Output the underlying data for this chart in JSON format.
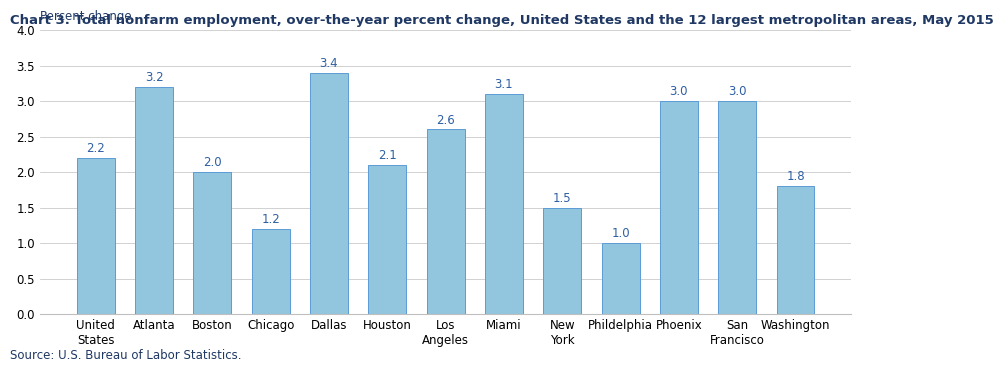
{
  "title": "Chart 3. Total nonfarm employment, over-the-year percent change, United States and the 12 largest metropolitan areas, May 2015",
  "ylabel": "Percent change",
  "categories": [
    "United\nStates",
    "Atlanta",
    "Boston",
    "Chicago",
    "Dallas",
    "Houston",
    "Los\nAngeles",
    "Miami",
    "New\nYork",
    "Phildelphia",
    "Phoenix",
    "San\nFrancisco",
    "Washington"
  ],
  "values": [
    2.2,
    3.2,
    2.0,
    1.2,
    3.4,
    2.1,
    2.6,
    3.1,
    1.5,
    1.0,
    3.0,
    3.0,
    1.8
  ],
  "bar_color": "#92C5DE",
  "bar_edge_color": "#5B9BD5",
  "ylim": [
    0,
    4.0
  ],
  "yticks": [
    0.0,
    0.5,
    1.0,
    1.5,
    2.0,
    2.5,
    3.0,
    3.5,
    4.0
  ],
  "source": "Source: U.S. Bureau of Labor Statistics.",
  "title_fontsize": 9.5,
  "label_fontsize": 8.5,
  "tick_fontsize": 8.5,
  "source_fontsize": 8.5,
  "title_color": "#1F3864",
  "label_color": "#1F3864",
  "source_color": "#1F3864",
  "value_label_color": "#2E5FA3",
  "value_label_fontsize": 8.5
}
